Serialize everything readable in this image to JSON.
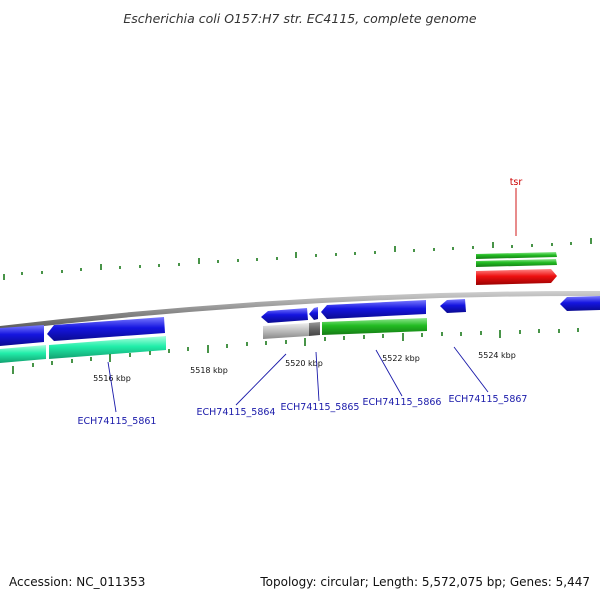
{
  "title": "Escherichia coli O157:H7 str. EC4115, complete genome",
  "footer": {
    "accession": "Accession: NC_011353",
    "summary": "Topology: circular; Length: 5,572,075 bp; Genes: 5,447"
  },
  "colors": {
    "backbone": "#8c8c8c",
    "forward_cds": "#22bb22",
    "reverse_cds": "#1515e0",
    "teal_cds": "#22eeaa",
    "red_cds": "#ee1111",
    "pseudo": "#bbbbbb",
    "tick": "#1a7a1a",
    "label_blue": "#1a1aaa",
    "label_red": "#cc0000"
  },
  "ruler": {
    "labels": [
      "5516 kbp",
      "5518 kbp",
      "5520 kbp",
      "5522 kbp",
      "5524 kbp"
    ]
  },
  "gene_labels": {
    "g5861": "ECH74115_5861",
    "g5864": "ECH74115_5864",
    "g5865": "ECH74115_5865",
    "g5866": "ECH74115_5866",
    "g5867": "ECH74115_5867",
    "tsr": "tsr"
  }
}
